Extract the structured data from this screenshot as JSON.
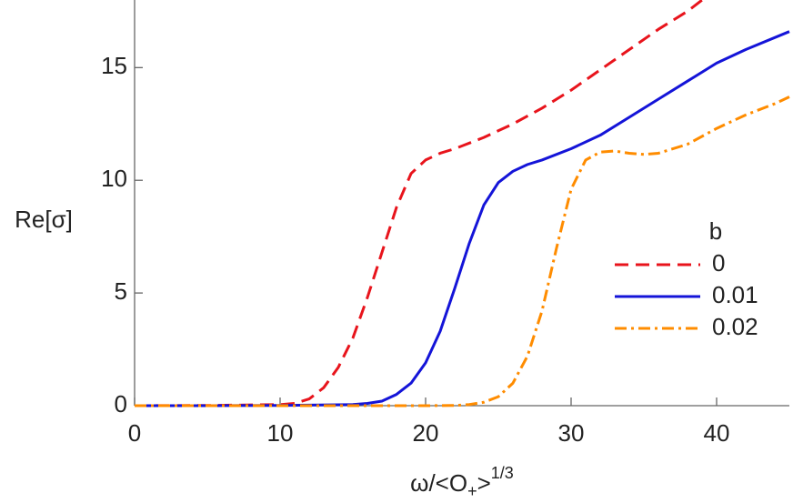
{
  "chart_data": {
    "type": "line",
    "ylabel": "Re[σ]",
    "xlabel": [
      "ω/<O",
      "+",
      ">",
      "1/3"
    ],
    "xlim": [
      0,
      45
    ],
    "ylim": [
      0,
      18
    ],
    "xticks": [
      0,
      10,
      20,
      30,
      40
    ],
    "yticks": [
      0,
      5,
      10,
      15
    ],
    "legend_title": "b",
    "series": [
      {
        "name": "0",
        "color": "#e8141c",
        "dash": "15,8",
        "x": [
          0,
          5,
          10,
          11,
          12,
          13,
          14,
          15,
          16,
          17,
          18,
          19,
          20,
          21,
          22,
          24,
          26,
          28,
          30,
          32,
          34,
          36,
          38,
          39
        ],
        "values": [
          0,
          0.01,
          0.05,
          0.1,
          0.3,
          0.8,
          1.7,
          3.0,
          4.8,
          6.8,
          8.8,
          10.3,
          10.9,
          11.2,
          11.4,
          11.9,
          12.5,
          13.2,
          14.0,
          14.9,
          15.8,
          16.7,
          17.5,
          18.0
        ]
      },
      {
        "name": "0.01",
        "color": "#1414d8",
        "dash": "",
        "x": [
          0,
          5,
          10,
          15,
          16,
          17,
          18,
          19,
          20,
          21,
          22,
          23,
          24,
          25,
          26,
          27,
          28,
          30,
          32,
          34,
          36,
          38,
          40,
          42,
          45
        ],
        "values": [
          0,
          0,
          0.01,
          0.05,
          0.1,
          0.2,
          0.5,
          1.0,
          1.9,
          3.3,
          5.2,
          7.2,
          8.9,
          9.9,
          10.4,
          10.7,
          10.9,
          11.4,
          12.0,
          12.8,
          13.6,
          14.4,
          15.2,
          15.8,
          16.6
        ]
      },
      {
        "name": "0.02",
        "color": "#ff8c00",
        "dash": "13,5,3,5",
        "x": [
          0,
          10,
          20,
          22,
          23,
          24,
          25,
          26,
          27,
          28,
          29,
          30,
          31,
          32,
          33,
          34,
          35,
          36,
          38,
          40,
          42,
          44,
          45
        ],
        "values": [
          0,
          0,
          0,
          0.01,
          0.05,
          0.15,
          0.4,
          1.0,
          2.2,
          4.2,
          7.0,
          9.6,
          10.9,
          11.25,
          11.3,
          11.2,
          11.15,
          11.2,
          11.6,
          12.3,
          12.9,
          13.4,
          13.7
        ]
      }
    ]
  }
}
